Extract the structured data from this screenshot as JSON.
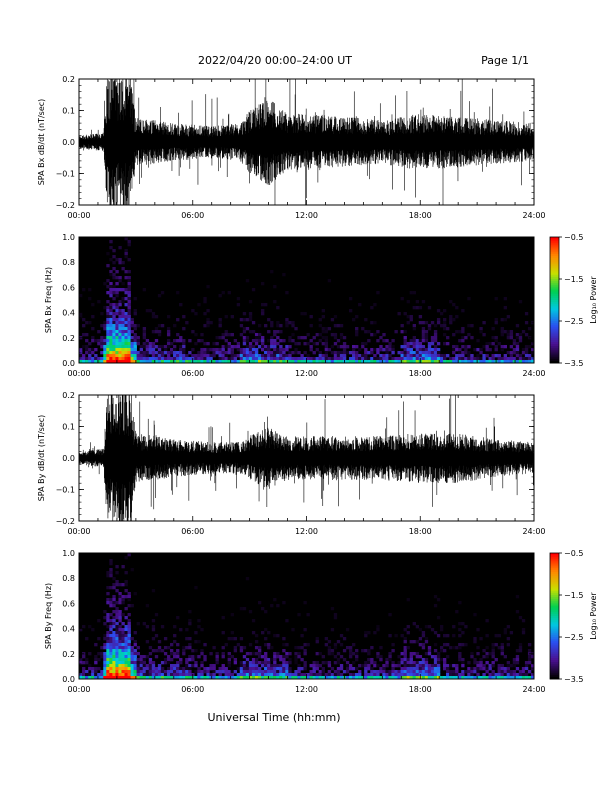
{
  "header": {
    "title": "2022/04/20  00:00–24:00 UT",
    "page": "Page 1/1"
  },
  "footer": {
    "xlabel": "Universal Time (hh:mm)"
  },
  "chart_data": [
    {
      "type": "line",
      "panel": "SPA Bx time series",
      "ylabel": "SPA Bx dB/dt (nT/sec)",
      "x_tick_labels": [
        "00:00",
        "06:00",
        "12:00",
        "18:00",
        "24:00"
      ],
      "y_tick_labels": [
        "0.2",
        "0.1",
        "0.0",
        "−0.1",
        "−0.2"
      ],
      "xlim_hours": [
        0,
        24
      ],
      "ylim": [
        -0.2,
        0.2
      ],
      "color": "#000000",
      "envelope": {
        "hours": [
          0,
          1.3,
          1.5,
          2.7,
          3.0,
          5.0,
          7.0,
          8.5,
          9.0,
          10.0,
          11.0,
          12.0,
          14.0,
          16.0,
          18.0,
          20.0,
          22.0,
          24.0
        ],
        "amplitude": [
          0.02,
          0.03,
          0.22,
          0.22,
          0.08,
          0.06,
          0.05,
          0.06,
          0.1,
          0.14,
          0.09,
          0.09,
          0.08,
          0.07,
          0.09,
          0.08,
          0.07,
          0.06
        ]
      }
    },
    {
      "type": "heatmap",
      "panel": "SPA Bx spectrogram",
      "ylabel": "SPA Bx Freq (Hz)",
      "x_tick_labels": [
        "00:00",
        "06:00",
        "12:00",
        "18:00",
        "24:00"
      ],
      "y_tick_labels": [
        "1.0",
        "0.8",
        "0.6",
        "0.4",
        "0.2",
        "0.0"
      ],
      "xlim_hours": [
        0,
        24
      ],
      "ylim_hz": [
        0,
        1.0
      ],
      "colorbar": {
        "label": "Log₁₀ Power",
        "range": [
          -3.5,
          -0.5
        ],
        "tick_labels": [
          "−0.5",
          "−1.5",
          "−2.5",
          "−3.5"
        ],
        "colors": [
          "#000000",
          "#4a1090",
          "#2a4ff0",
          "#00c8e0",
          "#00d050",
          "#c8e000",
          "#ff8800",
          "#ff0000"
        ]
      }
    },
    {
      "type": "line",
      "panel": "SPA By time series",
      "ylabel": "SPA By dB/dt (nT/sec)",
      "x_tick_labels": [
        "00:00",
        "06:00",
        "12:00",
        "18:00",
        "24:00"
      ],
      "y_tick_labels": [
        "0.2",
        "0.1",
        "0.0",
        "−0.1",
        "−0.2"
      ],
      "xlim_hours": [
        0,
        24
      ],
      "ylim": [
        -0.2,
        0.2
      ],
      "color": "#000000",
      "envelope": {
        "hours": [
          0,
          1.3,
          1.5,
          2.7,
          3.0,
          5.0,
          7.0,
          8.5,
          9.0,
          10.0,
          11.0,
          12.0,
          14.0,
          16.0,
          18.0,
          20.0,
          22.0,
          24.0
        ],
        "amplitude": [
          0.02,
          0.03,
          0.22,
          0.22,
          0.08,
          0.06,
          0.05,
          0.05,
          0.07,
          0.1,
          0.07,
          0.07,
          0.07,
          0.07,
          0.08,
          0.08,
          0.06,
          0.05
        ]
      }
    },
    {
      "type": "heatmap",
      "panel": "SPA By spectrogram",
      "ylabel": "SPA By Freq (Hz)",
      "x_tick_labels": [
        "00:00",
        "06:00",
        "12:00",
        "18:00",
        "24:00"
      ],
      "y_tick_labels": [
        "1.0",
        "0.8",
        "0.6",
        "0.4",
        "0.2",
        "0.0"
      ],
      "xlim_hours": [
        0,
        24
      ],
      "ylim_hz": [
        0,
        1.0
      ],
      "colorbar": {
        "label": "Log₁₀ Power",
        "range": [
          -3.5,
          -0.5
        ],
        "tick_labels": [
          "−0.5",
          "−1.5",
          "−2.5",
          "−3.5"
        ],
        "colors": [
          "#000000",
          "#4a1090",
          "#2a4ff0",
          "#00c8e0",
          "#00d050",
          "#c8e000",
          "#ff8800",
          "#ff0000"
        ]
      }
    }
  ]
}
